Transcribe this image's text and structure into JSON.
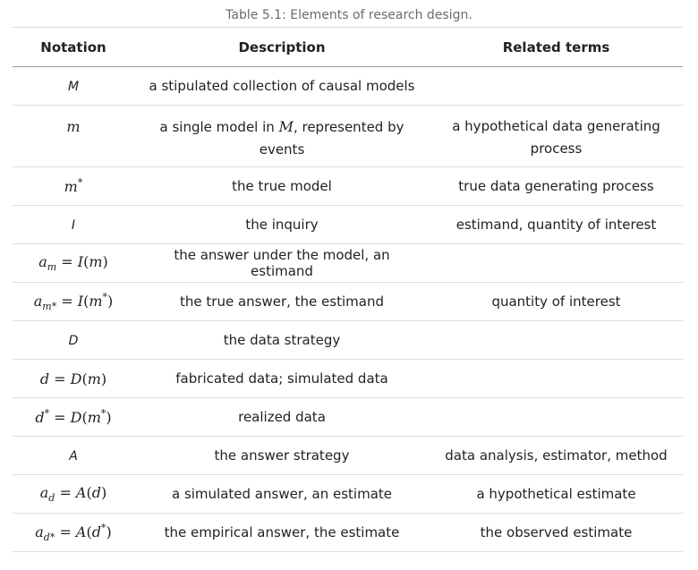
{
  "caption": "Table 5.1: Elements of research design.",
  "headers": {
    "notation": "Notation",
    "description": "Description",
    "related": "Related terms"
  },
  "rows": [
    {
      "notation": "M",
      "description": "a stipulated collection of causal models",
      "related": ""
    },
    {
      "notation": "m",
      "description": "a single model in M, represented by events",
      "related": "a hypothetical data generating process"
    },
    {
      "notation": "m*",
      "description": "the true model",
      "related": "true data generating process"
    },
    {
      "notation": "I",
      "description": "the inquiry",
      "related": "estimand, quantity of interest"
    },
    {
      "notation": "a_m = I(m)",
      "description": "the answer under the model, an estimand",
      "related": ""
    },
    {
      "notation": "a_{m*} = I(m*)",
      "description": "the true answer, the estimand",
      "related": "quantity of interest"
    },
    {
      "notation": "D",
      "description": "the data strategy",
      "related": ""
    },
    {
      "notation": "d = D(m)",
      "description": "fabricated data; simulated data",
      "related": ""
    },
    {
      "notation": "d* = D(m*)",
      "description": "realized data",
      "related": ""
    },
    {
      "notation": "A",
      "description": "the answer strategy",
      "related": "data analysis, estimator, method"
    },
    {
      "notation": "a_d = A(d)",
      "description": "a simulated answer, an estimate",
      "related": "a hypothetical estimate"
    },
    {
      "notation": "a_{d*} = A(d*)",
      "description": "the empirical answer, the estimate",
      "related": "the observed estimate"
    }
  ]
}
